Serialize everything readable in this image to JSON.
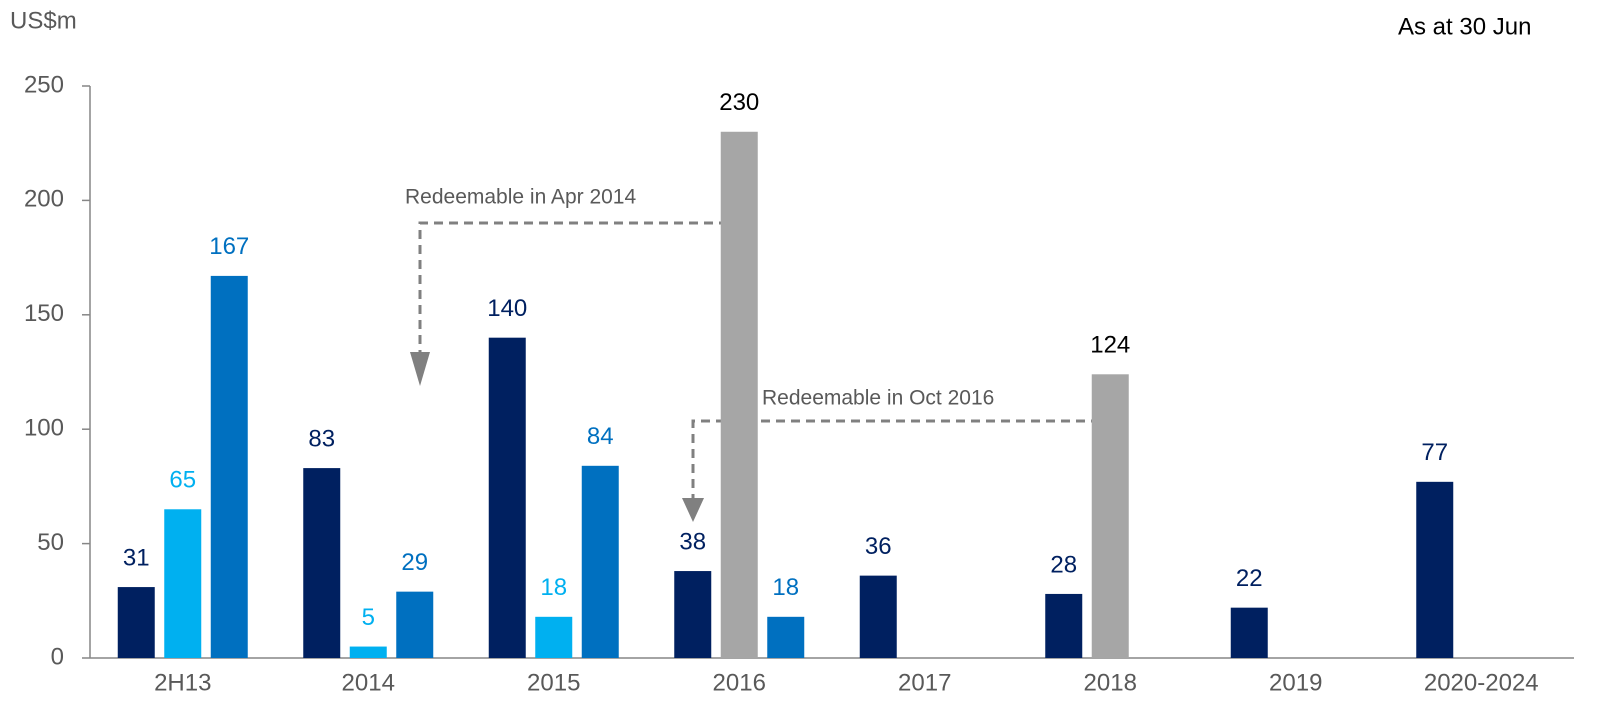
{
  "chart_data": {
    "type": "bar",
    "y_label": "US$m",
    "note": "As at  30 Jun",
    "annotations": [
      "Redeemable in Apr 2014",
      "Redeemable in Oct 2016"
    ],
    "categories": [
      "2H13",
      "2014",
      "2015",
      "2016",
      "2017",
      "2018",
      "2019",
      "2020-2024"
    ],
    "series": [
      {
        "color": "#002060",
        "values": [
          31,
          83,
          140,
          38,
          36,
          28,
          22,
          77
        ]
      },
      {
        "color": "#00b0f0",
        "values": [
          65,
          5,
          18,
          null,
          null,
          null,
          null,
          null
        ]
      },
      {
        "color": "#0070c0",
        "values": [
          167,
          29,
          84,
          18,
          null,
          null,
          null,
          null
        ]
      },
      {
        "color": "#a6a6a6",
        "label_color": "#000000",
        "values": [
          null,
          null,
          null,
          230,
          null,
          124,
          null,
          null
        ]
      }
    ],
    "ylim": [
      0,
      250
    ],
    "yticks": [
      0,
      50,
      100,
      150,
      200,
      250
    ],
    "grid": false
  }
}
